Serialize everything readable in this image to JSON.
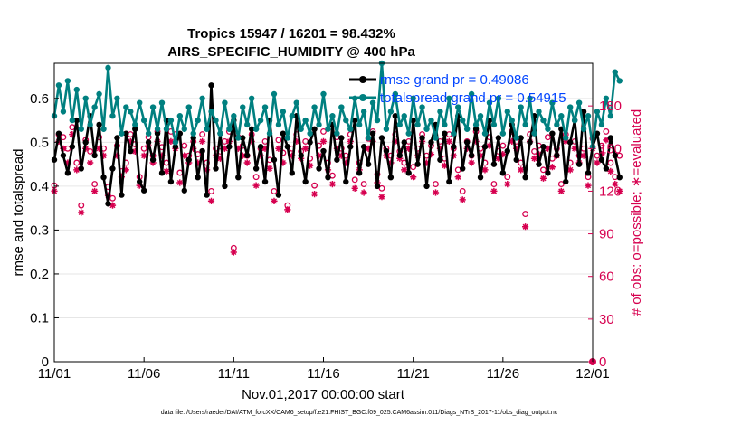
{
  "chart_data": {
    "type": "line",
    "title_lines": [
      "Tropics 15947 / 16201 = 98.432%",
      "AIRS_SPECIFIC_HUMIDITY @ 400 hPa"
    ],
    "xlabel": "Nov.01,2017 00:00:00 start",
    "ylabel_left": "rmse and totalspread",
    "ylabel_right": "# of obs: o=possible; ∗=evaluated",
    "x_ticks": [
      "11/01",
      "11/06",
      "11/11",
      "11/16",
      "11/21",
      "11/26",
      "12/01"
    ],
    "x_range_days": [
      0,
      30
    ],
    "y_left": {
      "range": [
        0,
        0.68
      ],
      "ticks": [
        "0",
        "0.1",
        "0.2",
        "0.3",
        "0.4",
        "0.5",
        "0.6"
      ],
      "tick_values": [
        0,
        0.1,
        0.2,
        0.3,
        0.4,
        0.5,
        0.6
      ]
    },
    "y_right": {
      "range": [
        0,
        210
      ],
      "ticks": [
        "0",
        "30",
        "60",
        "90",
        "120",
        "150",
        "180"
      ],
      "tick_values": [
        0,
        30,
        60,
        90,
        120,
        150,
        180
      ]
    },
    "legend": [
      {
        "label": "rmse grand pr = 0.49086",
        "color": "#000000"
      },
      {
        "label": "totalspread grand pr = 0.54915",
        "color": "#008080"
      }
    ],
    "step_days": 0.25,
    "series": [
      {
        "name": "rmse",
        "color": "#000000",
        "axis": "left",
        "values": [
          0.46,
          0.52,
          0.47,
          0.43,
          0.49,
          0.55,
          0.44,
          0.5,
          0.56,
          0.47,
          0.54,
          0.42,
          0.36,
          0.44,
          0.51,
          0.38,
          0.52,
          0.48,
          0.53,
          0.41,
          0.39,
          0.5,
          0.46,
          0.52,
          0.43,
          0.55,
          0.41,
          0.49,
          0.52,
          0.39,
          0.46,
          0.51,
          0.42,
          0.48,
          0.38,
          0.63,
          0.44,
          0.52,
          0.4,
          0.49,
          0.55,
          0.42,
          0.51,
          0.47,
          0.53,
          0.44,
          0.49,
          0.41,
          0.55,
          0.46,
          0.38,
          0.52,
          0.49,
          0.43,
          0.56,
          0.47,
          0.41,
          0.5,
          0.53,
          0.44,
          0.48,
          0.42,
          0.54,
          0.46,
          0.51,
          0.41,
          0.49,
          0.55,
          0.43,
          0.49,
          0.45,
          0.52,
          0.4,
          0.51,
          0.48,
          0.42,
          0.56,
          0.47,
          0.5,
          0.43,
          0.55,
          0.45,
          0.51,
          0.4,
          0.5,
          0.54,
          0.46,
          0.52,
          0.41,
          0.49,
          0.56,
          0.44,
          0.5,
          0.47,
          0.53,
          0.42,
          0.49,
          0.55,
          0.45,
          0.51,
          0.43,
          0.48,
          0.54,
          0.46,
          0.51,
          0.42,
          0.5,
          0.56,
          0.45,
          0.49,
          0.43,
          0.52,
          0.47,
          0.53,
          0.41,
          0.5,
          0.55,
          0.45,
          0.57,
          0.43,
          0.49,
          0.52,
          0.46,
          0.44,
          0.51,
          0.47,
          0.42
        ]
      },
      {
        "name": "totalspread",
        "color": "#008080",
        "axis": "left",
        "values": [
          0.56,
          0.63,
          0.57,
          0.64,
          0.55,
          0.62,
          0.53,
          0.6,
          0.54,
          0.58,
          0.61,
          0.53,
          0.67,
          0.56,
          0.6,
          0.52,
          0.58,
          0.57,
          0.54,
          0.59,
          0.55,
          0.52,
          0.58,
          0.53,
          0.59,
          0.53,
          0.55,
          0.5,
          0.56,
          0.53,
          0.58,
          0.52,
          0.55,
          0.6,
          0.53,
          0.57,
          0.55,
          0.52,
          0.59,
          0.53,
          0.56,
          0.51,
          0.58,
          0.54,
          0.6,
          0.53,
          0.55,
          0.58,
          0.52,
          0.61,
          0.54,
          0.57,
          0.51,
          0.56,
          0.59,
          0.53,
          0.55,
          0.52,
          0.58,
          0.54,
          0.61,
          0.53,
          0.56,
          0.52,
          0.58,
          0.55,
          0.53,
          0.6,
          0.54,
          0.57,
          0.51,
          0.59,
          0.55,
          0.68,
          0.53,
          0.57,
          0.61,
          0.54,
          0.56,
          0.52,
          0.6,
          0.54,
          0.58,
          0.53,
          0.55,
          0.51,
          0.57,
          0.54,
          0.6,
          0.52,
          0.58,
          0.55,
          0.53,
          0.61,
          0.54,
          0.56,
          0.52,
          0.59,
          0.54,
          0.6,
          0.52,
          0.57,
          0.55,
          0.51,
          0.58,
          0.54,
          0.6,
          0.52,
          0.57,
          0.55,
          0.53,
          0.59,
          0.54,
          0.56,
          0.51,
          0.58,
          0.55,
          0.59,
          0.53,
          0.56,
          0.49,
          0.57,
          0.54,
          0.6,
          0.56,
          0.66,
          0.64
        ]
      },
      {
        "name": "obs_possible",
        "color": "#d6004f",
        "axis": "right",
        "marker": "circle",
        "values": [
          124,
          160,
          158,
          150,
          165,
          140,
          110,
          156,
          148,
          125,
          158,
          150,
          123,
          115,
          152,
          134,
          140,
          160,
          153,
          130,
          150,
          158,
          145,
          162,
          151,
          140,
          162,
          160,
          133,
          152,
          145,
          155,
          146,
          160,
          140,
          120,
          150,
          148,
          155,
          162,
          80,
          158,
          152,
          145,
          160,
          130,
          150,
          155,
          142,
          120,
          156,
          147,
          110,
          150,
          160,
          148,
          155,
          143,
          124,
          152,
          162,
          140,
          131,
          158,
          150,
          145,
          160,
          128,
          140,
          125,
          157,
          162,
          132,
          122,
          150,
          145,
          160,
          148,
          140,
          155,
          137,
          150,
          160,
          145,
          152,
          125,
          155,
          143,
          160,
          150,
          135,
          120,
          155,
          145,
          162,
          150,
          140,
          158,
          125,
          148,
          152,
          130,
          162,
          155,
          140,
          104,
          160,
          148,
          152,
          135,
          158,
          143,
          150,
          125,
          160,
          140,
          155,
          145,
          150,
          130,
          157,
          145,
          152,
          162,
          140,
          130,
          145
        ]
      },
      {
        "name": "obs_evaluated",
        "color": "#d6004f",
        "axis": "right",
        "marker": "star",
        "values": [
          120,
          155,
          150,
          140,
          160,
          135,
          105,
          150,
          140,
          120,
          150,
          145,
          117,
          110,
          145,
          130,
          135,
          155,
          148,
          124,
          145,
          152,
          140,
          155,
          145,
          134,
          155,
          150,
          126,
          145,
          140,
          150,
          140,
          155,
          135,
          113,
          145,
          143,
          150,
          155,
          77,
          150,
          145,
          140,
          155,
          124,
          145,
          150,
          136,
          113,
          150,
          140,
          107,
          145,
          155,
          143,
          150,
          138,
          118,
          145,
          155,
          135,
          125,
          150,
          145,
          140,
          155,
          122,
          135,
          119,
          150,
          155,
          126,
          116,
          145,
          140,
          155,
          143,
          135,
          150,
          130,
          145,
          155,
          140,
          146,
          119,
          150,
          138,
          155,
          145,
          130,
          114,
          150,
          140,
          155,
          145,
          135,
          152,
          120,
          143,
          146,
          125,
          155,
          150,
          135,
          95,
          155,
          143,
          146,
          129,
          150,
          137,
          145,
          120,
          155,
          135,
          150,
          140,
          145,
          124,
          150,
          140,
          146,
          156,
          134,
          125,
          120
        ]
      }
    ]
  },
  "footer": "data file: /Users/raeder/DAI/ATM_forcXX/CAM6_setup/f.e21.FHIST_BGC.f09_025.CAM6assim.011/Diags_NTrS_2017-11/obs_diag_output.nc"
}
